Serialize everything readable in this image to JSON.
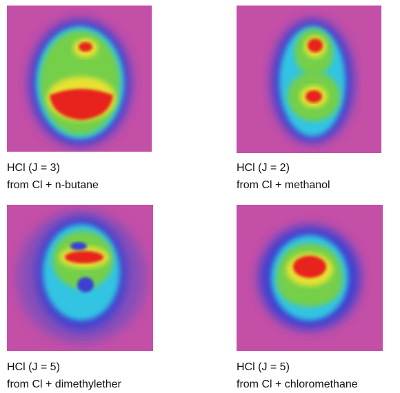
{
  "panels": [
    {
      "line1": "HCl (J = 3)",
      "line2": "from Cl + n-butane"
    },
    {
      "line1": "HCl (J = 2)",
      "line2": "from Cl + methanol"
    },
    {
      "line1": "HCl (J = 5)",
      "line2": "from Cl + dimethylether"
    },
    {
      "line1": "HCl (J = 5)",
      "line2": "from Cl + chloromethane"
    }
  ]
}
